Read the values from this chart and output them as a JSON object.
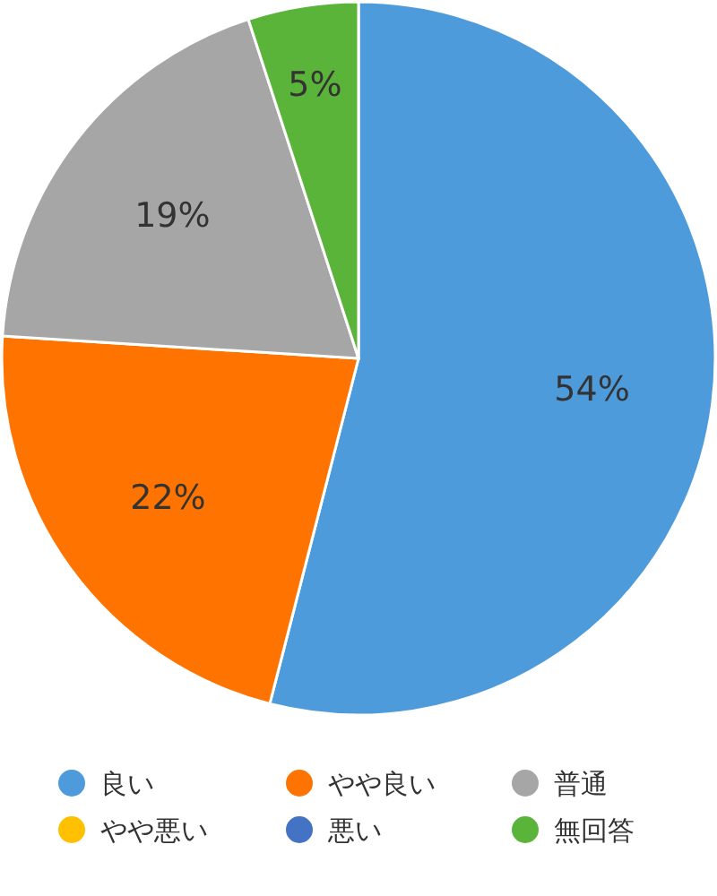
{
  "chart_data": {
    "type": "pie",
    "categories": [
      "良い",
      "やや良い",
      "普通",
      "やや悪い",
      "悪い",
      "無回答"
    ],
    "values": [
      54,
      22,
      19,
      0,
      0,
      5
    ],
    "value_labels": [
      "54%",
      "22%",
      "19%",
      null,
      null,
      "5%"
    ],
    "colors": [
      "#4e9bdc",
      "#ff7400",
      "#a6a6a6",
      "#ffc000",
      "#4472c4",
      "#5bb43a"
    ],
    "legend": "bottom"
  }
}
